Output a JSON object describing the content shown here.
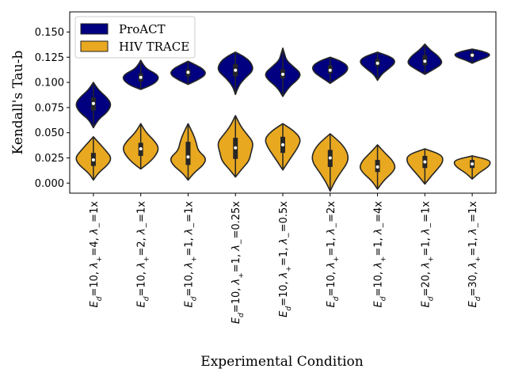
{
  "chart_data": {
    "type": "violin",
    "xlabel": "Experimental Condition",
    "ylabel": "Kendall's Tau-b",
    "ylim": [
      -0.01,
      0.17
    ],
    "yticks": [
      0.0,
      0.025,
      0.05,
      0.075,
      0.1,
      0.125,
      0.15
    ],
    "ytick_labels": [
      "0.000",
      "0.025",
      "0.050",
      "0.075",
      "0.100",
      "0.125",
      "0.150"
    ],
    "legend_position": "top-left",
    "categories": [
      "E_d=10, λ+=4, λ−=1x",
      "E_d=10, λ+=2, λ−=1x",
      "E_d=10, λ+=1, λ−=1x",
      "E_d=10, λ+=1, λ−=0.25x",
      "E_d=10, λ+=1, λ−=0.5x",
      "E_d=10, λ+=1, λ−=2x",
      "E_d=10, λ+=1, λ−=4x",
      "E_d=20, λ+=1, λ−=1x",
      "E_d=30, λ+=1, λ−=1x"
    ],
    "category_labels_rich": [
      {
        "ed": "10",
        "lp": "4",
        "lm": "1x"
      },
      {
        "ed": "10",
        "lp": "2",
        "lm": "1x"
      },
      {
        "ed": "10",
        "lp": "1",
        "lm": "1x"
      },
      {
        "ed": "10",
        "lp": "1",
        "lm": "0.25x"
      },
      {
        "ed": "10",
        "lp": "1",
        "lm": "0.5x"
      },
      {
        "ed": "10",
        "lp": "1",
        "lm": "2x"
      },
      {
        "ed": "10",
        "lp": "1",
        "lm": "4x"
      },
      {
        "ed": "20",
        "lp": "1",
        "lm": "1x"
      },
      {
        "ed": "30",
        "lp": "1",
        "lm": "1x"
      }
    ],
    "series": [
      {
        "name": "ProACT",
        "color": "#000080",
        "violins": [
          {
            "min": 0.055,
            "q1": 0.072,
            "median": 0.079,
            "q3": 0.085,
            "max": 0.1,
            "profile": [
              [
                0.055,
                0.0
              ],
              [
                0.063,
                0.25
              ],
              [
                0.07,
                0.75
              ],
              [
                0.078,
                1.0
              ],
              [
                0.085,
                0.75
              ],
              [
                0.092,
                0.3
              ],
              [
                0.1,
                0.0
              ]
            ]
          },
          {
            "min": 0.093,
            "q1": 0.101,
            "median": 0.105,
            "q3": 0.109,
            "max": 0.122,
            "profile": [
              [
                0.093,
                0.0
              ],
              [
                0.097,
                0.6
              ],
              [
                0.103,
                1.0
              ],
              [
                0.108,
                0.9
              ],
              [
                0.113,
                0.35
              ],
              [
                0.118,
                0.12
              ],
              [
                0.122,
                0.0
              ]
            ]
          },
          {
            "min": 0.098,
            "q1": 0.106,
            "median": 0.11,
            "q3": 0.113,
            "max": 0.121,
            "profile": [
              [
                0.098,
                0.0
              ],
              [
                0.102,
                0.5
              ],
              [
                0.108,
                1.0
              ],
              [
                0.113,
                0.85
              ],
              [
                0.117,
                0.45
              ],
              [
                0.121,
                0.0
              ]
            ]
          },
          {
            "min": 0.088,
            "q1": 0.106,
            "median": 0.112,
            "q3": 0.118,
            "max": 0.13,
            "profile": [
              [
                0.088,
                0.0
              ],
              [
                0.096,
                0.15
              ],
              [
                0.104,
                0.5
              ],
              [
                0.112,
                1.0
              ],
              [
                0.12,
                0.85
              ],
              [
                0.126,
                0.45
              ],
              [
                0.13,
                0.0
              ]
            ]
          },
          {
            "min": 0.086,
            "q1": 0.104,
            "median": 0.108,
            "q3": 0.113,
            "max": 0.134,
            "profile": [
              [
                0.086,
                0.0
              ],
              [
                0.095,
                0.3
              ],
              [
                0.103,
                0.85
              ],
              [
                0.109,
                1.0
              ],
              [
                0.116,
                0.55
              ],
              [
                0.122,
                0.2
              ],
              [
                0.128,
                0.1
              ],
              [
                0.134,
                0.0
              ]
            ]
          },
          {
            "min": 0.099,
            "q1": 0.109,
            "median": 0.112,
            "q3": 0.117,
            "max": 0.125,
            "profile": [
              [
                0.099,
                0.0
              ],
              [
                0.104,
                0.4
              ],
              [
                0.11,
                0.9
              ],
              [
                0.116,
                1.0
              ],
              [
                0.121,
                0.6
              ],
              [
                0.125,
                0.0
              ]
            ]
          },
          {
            "min": 0.102,
            "q1": 0.116,
            "median": 0.119,
            "q3": 0.123,
            "max": 0.13,
            "profile": [
              [
                0.102,
                0.0
              ],
              [
                0.108,
                0.2
              ],
              [
                0.114,
                0.65
              ],
              [
                0.12,
                1.0
              ],
              [
                0.125,
                0.8
              ],
              [
                0.13,
                0.0
              ]
            ]
          },
          {
            "min": 0.108,
            "q1": 0.117,
            "median": 0.121,
            "q3": 0.127,
            "max": 0.138,
            "profile": [
              [
                0.108,
                0.0
              ],
              [
                0.113,
                0.5
              ],
              [
                0.119,
                1.0
              ],
              [
                0.126,
                0.75
              ],
              [
                0.132,
                0.3
              ],
              [
                0.138,
                0.0
              ]
            ]
          },
          {
            "min": 0.119,
            "q1": 0.125,
            "median": 0.127,
            "q3": 0.129,
            "max": 0.133,
            "profile": [
              [
                0.119,
                0.0
              ],
              [
                0.122,
                0.35
              ],
              [
                0.125,
                0.85
              ],
              [
                0.128,
                1.0
              ],
              [
                0.131,
                0.55
              ],
              [
                0.133,
                0.0
              ]
            ]
          }
        ]
      },
      {
        "name": "HIV TRACE",
        "color": "#E8A820",
        "violins": [
          {
            "min": 0.003,
            "q1": 0.017,
            "median": 0.023,
            "q3": 0.03,
            "max": 0.046,
            "profile": [
              [
                0.003,
                0.0
              ],
              [
                0.01,
                0.25
              ],
              [
                0.018,
                0.8
              ],
              [
                0.025,
                1.0
              ],
              [
                0.032,
                0.7
              ],
              [
                0.04,
                0.3
              ],
              [
                0.046,
                0.0
              ]
            ]
          },
          {
            "min": 0.014,
            "q1": 0.027,
            "median": 0.034,
            "q3": 0.04,
            "max": 0.059,
            "profile": [
              [
                0.014,
                0.0
              ],
              [
                0.02,
                0.45
              ],
              [
                0.028,
                0.85
              ],
              [
                0.035,
                1.0
              ],
              [
                0.042,
                0.75
              ],
              [
                0.05,
                0.3
              ],
              [
                0.059,
                0.0
              ]
            ]
          },
          {
            "min": 0.003,
            "q1": 0.018,
            "median": 0.026,
            "q3": 0.041,
            "max": 0.059,
            "profile": [
              [
                0.003,
                0.0
              ],
              [
                0.01,
                0.3
              ],
              [
                0.018,
                0.85
              ],
              [
                0.025,
                1.0
              ],
              [
                0.032,
                0.55
              ],
              [
                0.04,
                0.45
              ],
              [
                0.048,
                0.3
              ],
              [
                0.059,
                0.0
              ]
            ]
          },
          {
            "min": 0.006,
            "q1": 0.024,
            "median": 0.035,
            "q3": 0.045,
            "max": 0.067,
            "profile": [
              [
                0.006,
                0.0
              ],
              [
                0.014,
                0.35
              ],
              [
                0.022,
                0.75
              ],
              [
                0.03,
                0.85
              ],
              [
                0.04,
                1.0
              ],
              [
                0.048,
                0.65
              ],
              [
                0.056,
                0.3
              ],
              [
                0.067,
                0.0
              ]
            ]
          },
          {
            "min": 0.013,
            "q1": 0.03,
            "median": 0.038,
            "q3": 0.046,
            "max": 0.059,
            "profile": [
              [
                0.013,
                0.0
              ],
              [
                0.02,
                0.25
              ],
              [
                0.028,
                0.55
              ],
              [
                0.036,
                0.85
              ],
              [
                0.044,
                1.0
              ],
              [
                0.052,
                0.6
              ],
              [
                0.059,
                0.0
              ]
            ]
          },
          {
            "min": -0.008,
            "q1": 0.016,
            "median": 0.025,
            "q3": 0.033,
            "max": 0.049,
            "profile": [
              [
                -0.008,
                0.0
              ],
              [
                0.0,
                0.2
              ],
              [
                0.01,
                0.55
              ],
              [
                0.02,
                0.95
              ],
              [
                0.028,
                1.0
              ],
              [
                0.038,
                0.7
              ],
              [
                0.049,
                0.0
              ]
            ]
          },
          {
            "min": -0.006,
            "q1": 0.011,
            "median": 0.016,
            "q3": 0.023,
            "max": 0.038,
            "profile": [
              [
                -0.006,
                0.0
              ],
              [
                0.002,
                0.3
              ],
              [
                0.01,
                0.8
              ],
              [
                0.016,
                1.0
              ],
              [
                0.023,
                0.8
              ],
              [
                0.03,
                0.4
              ],
              [
                0.038,
                0.0
              ]
            ]
          },
          {
            "min": -0.001,
            "q1": 0.015,
            "median": 0.021,
            "q3": 0.027,
            "max": 0.034,
            "profile": [
              [
                -0.001,
                0.0
              ],
              [
                0.006,
                0.3
              ],
              [
                0.014,
                0.7
              ],
              [
                0.021,
                1.0
              ],
              [
                0.028,
                0.95
              ],
              [
                0.034,
                0.0
              ]
            ]
          },
          {
            "min": 0.004,
            "q1": 0.015,
            "median": 0.019,
            "q3": 0.023,
            "max": 0.027,
            "profile": [
              [
                0.004,
                0.0
              ],
              [
                0.01,
                0.35
              ],
              [
                0.015,
                0.8
              ],
              [
                0.019,
                1.0
              ],
              [
                0.023,
                0.95
              ],
              [
                0.027,
                0.0
              ]
            ]
          }
        ]
      }
    ]
  }
}
